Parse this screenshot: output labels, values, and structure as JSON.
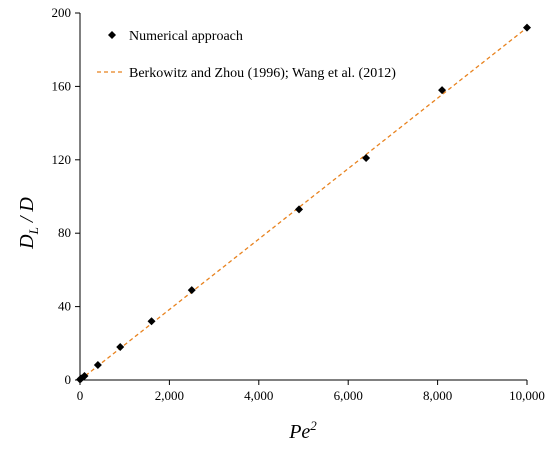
{
  "chart_data": {
    "type": "scatter",
    "xlabel": "Pe",
    "xlabel_superscript": "2",
    "ylabel": "D",
    "ylabel_subscript": "L",
    "ylabel_suffix": " / D",
    "xlim": [
      0,
      10000
    ],
    "ylim": [
      0,
      200
    ],
    "x_ticks": [
      0,
      2000,
      4000,
      6000,
      8000,
      10000
    ],
    "x_tick_labels": [
      "0",
      "2,000",
      "4,000",
      "6,000",
      "8,000",
      "10,000"
    ],
    "y_ticks": [
      0,
      40,
      80,
      120,
      160,
      200
    ],
    "y_tick_labels": [
      "0",
      "40",
      "80",
      "120",
      "160",
      "200"
    ],
    "grid": false,
    "legend_position": "top-left",
    "series": [
      {
        "name": "Numerical approach",
        "kind": "scatter",
        "marker": "diamond",
        "color": "#000000",
        "points": [
          {
            "x": 0,
            "y": 0.3
          },
          {
            "x": 25,
            "y": 0.8
          },
          {
            "x": 100,
            "y": 2.2
          },
          {
            "x": 400,
            "y": 8.2
          },
          {
            "x": 900,
            "y": 18
          },
          {
            "x": 1600,
            "y": 32
          },
          {
            "x": 2500,
            "y": 49
          },
          {
            "x": 4900,
            "y": 93
          },
          {
            "x": 6400,
            "y": 121
          },
          {
            "x": 8100,
            "y": 158
          },
          {
            "x": 10000,
            "y": 192
          }
        ]
      },
      {
        "name": "Berkowitz and Zhou (1996); Wang et al. (2012)",
        "kind": "line",
        "style": "dashed",
        "color": "#E8821E",
        "points": [
          {
            "x": 0,
            "y": 0
          },
          {
            "x": 10000,
            "y": 192
          }
        ]
      }
    ]
  }
}
